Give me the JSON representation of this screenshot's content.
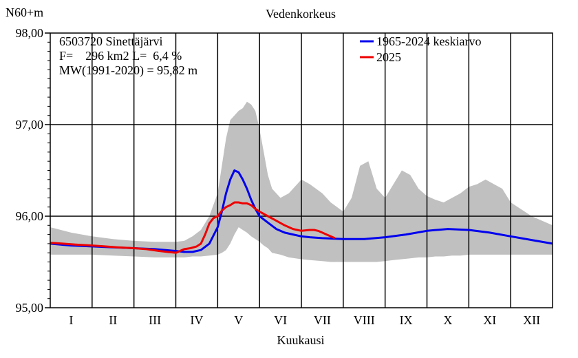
{
  "chart_data": {
    "type": "line",
    "title": "Vedenkorkeus",
    "ylabel": "N60+m",
    "xlabel": "Kuukausi",
    "ylim": [
      95.0,
      98.0
    ],
    "xlim": [
      0,
      12
    ],
    "yticks": [
      "95,00",
      "96,00",
      "97,00",
      "98,00"
    ],
    "ytick_values": [
      95.0,
      96.0,
      97.0,
      98.0
    ],
    "months": [
      "I",
      "II",
      "III",
      "IV",
      "V",
      "VI",
      "VII",
      "VIII",
      "IX",
      "X",
      "XI",
      "XII"
    ],
    "grid": true,
    "legend_position": "top-right",
    "info_lines": [
      "6503720 Sinettäjärvi",
      "F=    296 km2 L=  6,4 %",
      "MW(1991-2020) = 95,82 m"
    ],
    "range_band": {
      "color": "#c0c0c0",
      "x": [
        0,
        0.5,
        1,
        1.5,
        2,
        2.5,
        3,
        3.2,
        3.4,
        3.6,
        3.8,
        4.0,
        4.1,
        4.2,
        4.3,
        4.4,
        4.5,
        4.6,
        4.7,
        4.8,
        4.9,
        5.0,
        5.1,
        5.2,
        5.3,
        5.5,
        5.7,
        6.0,
        6.2,
        6.5,
        6.7,
        7.0,
        7.2,
        7.4,
        7.6,
        7.8,
        8.0,
        8.2,
        8.4,
        8.6,
        8.8,
        9.0,
        9.2,
        9.4,
        9.6,
        9.8,
        10.0,
        10.2,
        10.4,
        10.6,
        10.8,
        11.0,
        11.5,
        12
      ],
      "upper": [
        95.88,
        95.82,
        95.78,
        95.75,
        95.73,
        95.72,
        95.72,
        95.73,
        95.78,
        95.85,
        96.0,
        96.25,
        96.55,
        96.85,
        97.05,
        97.1,
        97.15,
        97.18,
        97.25,
        97.22,
        97.15,
        96.95,
        96.7,
        96.45,
        96.3,
        96.2,
        96.25,
        96.4,
        96.35,
        96.25,
        96.15,
        96.05,
        96.2,
        96.55,
        96.6,
        96.3,
        96.2,
        96.35,
        96.5,
        96.45,
        96.3,
        96.22,
        96.18,
        96.15,
        96.2,
        96.25,
        96.32,
        96.35,
        96.4,
        96.35,
        96.3,
        96.15,
        96.0,
        95.9
      ],
      "lower": [
        95.58,
        95.58,
        95.58,
        95.57,
        95.56,
        95.55,
        95.55,
        95.55,
        95.56,
        95.56,
        95.57,
        95.58,
        95.6,
        95.63,
        95.7,
        95.8,
        95.88,
        95.85,
        95.82,
        95.78,
        95.75,
        95.72,
        95.68,
        95.65,
        95.6,
        95.58,
        95.55,
        95.53,
        95.52,
        95.51,
        95.5,
        95.5,
        95.5,
        95.5,
        95.5,
        95.5,
        95.51,
        95.52,
        95.53,
        95.54,
        95.55,
        95.55,
        95.56,
        95.56,
        95.57,
        95.57,
        95.58,
        95.58,
        95.58,
        95.58,
        95.58,
        95.58,
        95.58,
        95.58
      ]
    },
    "series": [
      {
        "name": "1965-2024 keskiarvo",
        "color": "#0000ee",
        "x": [
          0,
          0.5,
          1,
          1.5,
          2,
          2.5,
          3,
          3.2,
          3.4,
          3.6,
          3.8,
          4.0,
          4.1,
          4.2,
          4.3,
          4.4,
          4.5,
          4.6,
          4.7,
          4.8,
          4.9,
          5.0,
          5.2,
          5.4,
          5.6,
          5.8,
          6.0,
          6.2,
          6.5,
          7.0,
          7.5,
          8.0,
          8.5,
          9.0,
          9.5,
          10.0,
          10.5,
          11.0,
          11.5,
          12.0
        ],
        "y": [
          95.7,
          95.68,
          95.67,
          95.66,
          95.65,
          95.64,
          95.62,
          95.61,
          95.61,
          95.63,
          95.7,
          95.88,
          96.05,
          96.25,
          96.4,
          96.5,
          96.48,
          96.4,
          96.3,
          96.18,
          96.08,
          96.0,
          95.93,
          95.86,
          95.82,
          95.8,
          95.78,
          95.77,
          95.76,
          95.75,
          95.75,
          95.77,
          95.8,
          95.84,
          95.86,
          95.85,
          95.82,
          95.78,
          95.74,
          95.7
        ]
      },
      {
        "name": "2025",
        "color": "#ee0000",
        "x": [
          0,
          0.3,
          0.6,
          1.0,
          1.3,
          1.6,
          2.0,
          2.3,
          2.6,
          2.8,
          3.0,
          3.1,
          3.2,
          3.35,
          3.5,
          3.6,
          3.7,
          3.8,
          3.9,
          4.0,
          4.1,
          4.2,
          4.3,
          4.4,
          4.5,
          4.6,
          4.7,
          4.8,
          4.9,
          5.0,
          5.2,
          5.4,
          5.6,
          5.8,
          6.0,
          6.2,
          6.3,
          6.4,
          6.5,
          6.6,
          6.7,
          6.8
        ],
        "y": [
          95.71,
          95.7,
          95.69,
          95.68,
          95.67,
          95.66,
          95.65,
          95.64,
          95.62,
          95.61,
          95.6,
          95.62,
          95.64,
          95.65,
          95.67,
          95.7,
          95.8,
          95.92,
          95.98,
          96.0,
          96.06,
          96.1,
          96.12,
          96.15,
          96.15,
          96.14,
          96.14,
          96.12,
          96.08,
          96.05,
          96.0,
          95.95,
          95.9,
          95.86,
          95.84,
          95.85,
          95.85,
          95.84,
          95.82,
          95.8,
          95.78,
          95.76
        ]
      }
    ]
  }
}
